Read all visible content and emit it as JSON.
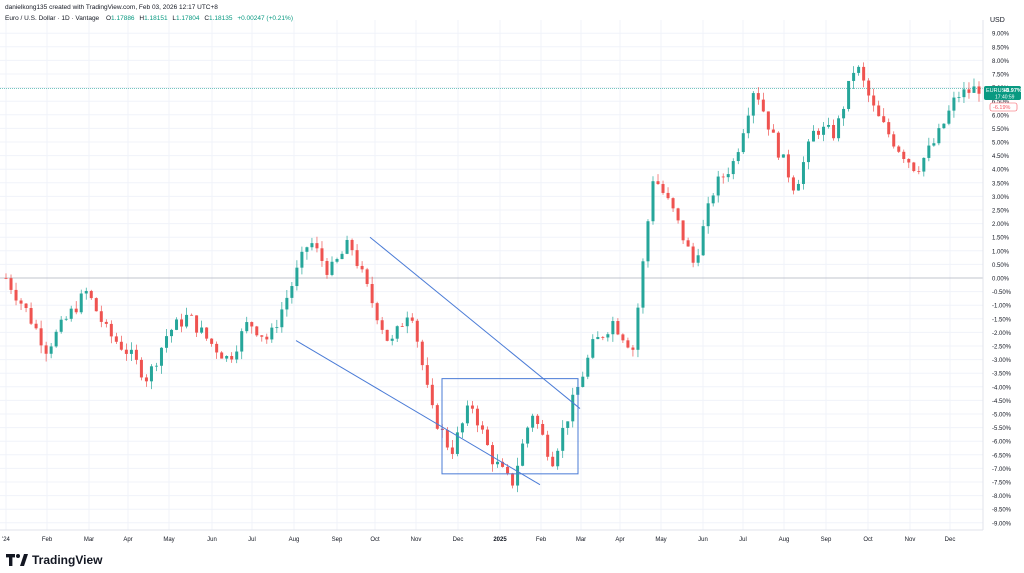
{
  "header": {
    "credit": "danielkong135 created with TradingView.com, Feb 03, 2026 12:17 UTC+8",
    "symbol_line": "Euro / U.S. Dollar · 1D · Vantage",
    "ohlc": [
      {
        "key": "O",
        "value": "1.17886"
      },
      {
        "key": "H",
        "value": "1.18151"
      },
      {
        "key": "L",
        "value": "1.17804"
      },
      {
        "key": "C",
        "value": "1.18135"
      }
    ],
    "change": "+0.00247 (+0.21%)"
  },
  "brand": {
    "name": "TradingView"
  },
  "colors": {
    "up": "#26a69a",
    "down": "#ef5350",
    "trendline": "#4a7bd6",
    "grid": "#f0f3fa",
    "badge_green": "#089981",
    "badge_pink": "#f7525f"
  },
  "chart_data": {
    "type": "candlestick",
    "symbol": "EURUSD",
    "interval": "1D",
    "y_unit": "USD",
    "y_scale": "percent",
    "ylim": [
      -9.5,
      9.5
    ],
    "grid": true,
    "x_ticks": [
      "'24",
      "Feb",
      "Mar",
      "Apr",
      "May",
      "Jun",
      "Jul",
      "Aug",
      "Sep",
      "Oct",
      "Nov",
      "Dec",
      "2025",
      "Feb",
      "Mar",
      "Apr",
      "May",
      "Jun",
      "Jul",
      "Aug",
      "Sep",
      "Oct",
      "Nov",
      "Dec"
    ],
    "y_ticks": [
      "9.00%",
      "8.50%",
      "8.00%",
      "7.50%",
      "7.00%",
      "6.50%",
      "6.00%",
      "5.50%",
      "5.00%",
      "4.50%",
      "4.00%",
      "3.50%",
      "3.00%",
      "2.50%",
      "2.00%",
      "1.50%",
      "1.00%",
      "0.50%",
      "0.00%",
      "-0.50%",
      "-1.00%",
      "-1.50%",
      "-2.00%",
      "-2.50%",
      "-3.00%",
      "-3.50%",
      "-4.00%",
      "-4.50%",
      "-5.00%",
      "-5.50%",
      "-6.00%",
      "-6.50%",
      "-7.00%",
      "-7.50%",
      "-8.00%",
      "-8.50%",
      "-9.00%"
    ],
    "price_path": [
      [
        "'24",
        0.0
      ],
      [
        "Jan",
        -1.2
      ],
      [
        "Feb",
        -2.6
      ],
      [
        "Feb",
        -1.5
      ],
      [
        "Mar",
        -0.5
      ],
      [
        "Mar",
        -2.0
      ],
      [
        "Apr",
        -2.7
      ],
      [
        "Apr",
        -3.7
      ],
      [
        "May",
        -2.0
      ],
      [
        "May",
        -1.4
      ],
      [
        "Jun",
        -2.3
      ],
      [
        "Jun",
        -3.0
      ],
      [
        "Jul",
        -1.6
      ],
      [
        "Aug",
        -2.3
      ],
      [
        "Aug",
        -0.5
      ],
      [
        "Sep",
        1.4
      ],
      [
        "Sep",
        0.2
      ],
      [
        "Sep",
        1.3
      ],
      [
        "Oct",
        -0.7
      ],
      [
        "Oct",
        -2.5
      ],
      [
        "Nov",
        -1.0
      ],
      [
        "Nov",
        -4.8
      ],
      [
        "Dec",
        -6.4
      ],
      [
        "Dec",
        -4.6
      ],
      [
        "2025",
        -6.6
      ],
      [
        "Jan",
        -7.6
      ],
      [
        "Feb",
        -4.9
      ],
      [
        "Feb",
        -6.7
      ],
      [
        "Mar",
        -4.6
      ],
      [
        "Mar",
        -2.5
      ],
      [
        "Apr",
        -1.6
      ],
      [
        "Apr",
        -2.6
      ],
      [
        "Apr",
        3.8
      ],
      [
        "May",
        2.4
      ],
      [
        "May",
        0.5
      ],
      [
        "Jun",
        3.3
      ],
      [
        "Jun",
        4.3
      ],
      [
        "Jul",
        7.1
      ],
      [
        "Jul",
        5.0
      ],
      [
        "Aug",
        3.3
      ],
      [
        "Aug",
        5.5
      ],
      [
        "Sep",
        5.3
      ],
      [
        "Sep",
        7.9
      ],
      [
        "Oct",
        6.0
      ],
      [
        "Oct",
        4.9
      ],
      [
        "Nov",
        4.0
      ],
      [
        "Nov",
        5.1
      ],
      [
        "Dec",
        6.7
      ],
      [
        "Dec",
        6.97
      ]
    ],
    "trendlines": [
      {
        "from": [
          "Sep",
          1.5
        ],
        "to": [
          "Mar",
          -4.8
        ]
      },
      {
        "from": [
          "Aug",
          -2.3
        ],
        "to": [
          "Feb",
          -7.6
        ]
      }
    ],
    "box": {
      "x_from": "Dec",
      "x_to": "Mar",
      "y_from": -3.7,
      "y_to": -7.2
    },
    "horizontal_lines": [
      0.0
    ],
    "last_badge": {
      "label": "EURUSD",
      "value": "+6.97%",
      "countdown": "17:40:59"
    },
    "secondary_badge": {
      "value": "-6.19%"
    },
    "current_level": 6.97
  }
}
